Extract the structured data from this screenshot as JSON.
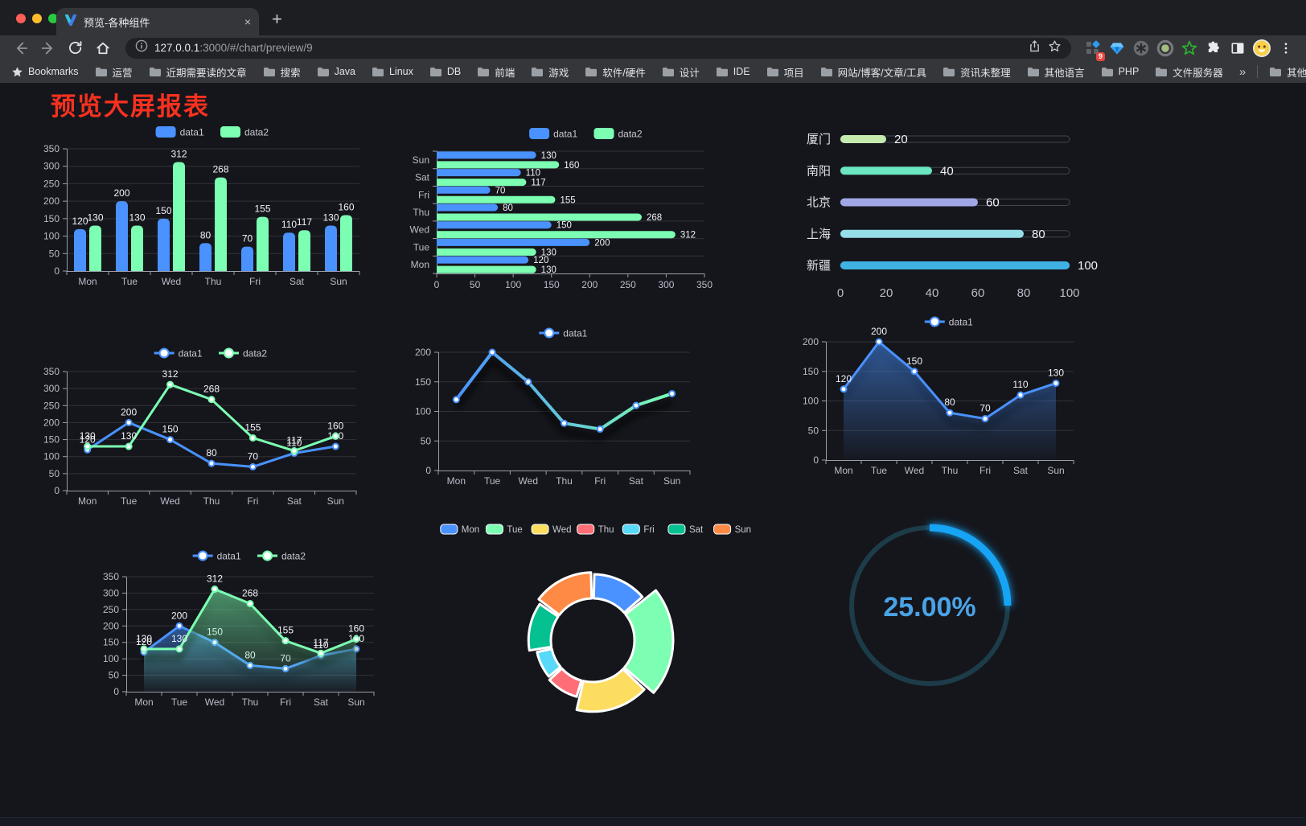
{
  "browser": {
    "traffic_lights": [
      "#ff5f57",
      "#febc2e",
      "#28c840"
    ],
    "tab": {
      "title": "预览-各种组件",
      "close": "×",
      "new_tab": "+"
    },
    "url": {
      "host": "127.0.0.1",
      "rest": ":3000/#/chart/preview/9"
    },
    "extension_badge": "9",
    "bookmarks_bar": {
      "root_label": "Bookmarks",
      "folders": [
        "运营",
        "近期需要读的文章",
        "搜索",
        "Java",
        "Linux",
        "DB",
        "前端",
        "游戏",
        "软件/硬件",
        "设计",
        "IDE",
        "项目",
        "网站/博客/文章/工具",
        "资讯未整理",
        "其他语言",
        "PHP",
        "文件服务器"
      ],
      "overflow": "»",
      "other": "其他书签"
    }
  },
  "page": {
    "title": "预览大屏报表",
    "title_color": "#f8311f",
    "background": "#15161c"
  },
  "chart_data": [
    {
      "type": "bar",
      "title": "",
      "categories": [
        "Mon",
        "Tue",
        "Wed",
        "Thu",
        "Fri",
        "Sat",
        "Sun"
      ],
      "series": [
        {
          "name": "data1",
          "color": "#4992ff",
          "values": [
            120,
            200,
            150,
            80,
            70,
            110,
            130
          ]
        },
        {
          "name": "data2",
          "color": "#7cffb2",
          "values": [
            130,
            130,
            312,
            268,
            155,
            117,
            160
          ]
        }
      ],
      "ymax": 350,
      "ystep": 50,
      "show_labels": true,
      "legend_position": "top",
      "grid": true
    },
    {
      "type": "hbar",
      "categories": [
        "Mon",
        "Tue",
        "Wed",
        "Thu",
        "Fri",
        "Sat",
        "Sun"
      ],
      "series": [
        {
          "name": "data1",
          "color": "#4992ff",
          "values": [
            120,
            200,
            150,
            80,
            70,
            110,
            130
          ]
        },
        {
          "name": "data2",
          "color": "#7cffb2",
          "values": [
            130,
            130,
            312,
            268,
            155,
            117,
            160
          ]
        }
      ],
      "xmax": 350,
      "xstep": 50,
      "show_labels": true,
      "legend_position": "top"
    },
    {
      "type": "progress",
      "max": 100,
      "xticks": [
        0,
        20,
        40,
        60,
        80,
        100
      ],
      "items": [
        {
          "label": "厦门",
          "value": 20,
          "color": "#c4ebad"
        },
        {
          "label": "南阳",
          "value": 40,
          "color": "#6be6c1"
        },
        {
          "label": "北京",
          "value": 60,
          "color": "#a0a7e6"
        },
        {
          "label": "上海",
          "value": 80,
          "color": "#96dee8"
        },
        {
          "label": "新疆",
          "value": 100,
          "color": "#3fb1e3"
        }
      ]
    },
    {
      "type": "line",
      "categories": [
        "Mon",
        "Tue",
        "Wed",
        "Thu",
        "Fri",
        "Sat",
        "Sun"
      ],
      "series": [
        {
          "name": "data1",
          "color": "#4992ff",
          "values": [
            120,
            200,
            150,
            80,
            70,
            110,
            130
          ]
        },
        {
          "name": "data2",
          "color": "#7cffb2",
          "values": [
            130,
            130,
            312,
            268,
            155,
            117,
            160
          ]
        }
      ],
      "ymax": 350,
      "ystep": 50,
      "show_labels": true,
      "legend_position": "top"
    },
    {
      "type": "line",
      "categories": [
        "Mon",
        "Tue",
        "Wed",
        "Thu",
        "Fri",
        "Sat",
        "Sun"
      ],
      "series": [
        {
          "name": "data1",
          "gradient": [
            "#4992ff",
            "#7cffb2"
          ],
          "values": [
            120,
            200,
            150,
            80,
            70,
            110,
            130
          ]
        }
      ],
      "ymax": 200,
      "ystep": 50,
      "show_labels": false,
      "shadow": true,
      "lw": 4,
      "legend_position": "top"
    },
    {
      "type": "line",
      "categories": [
        "Mon",
        "Tue",
        "Wed",
        "Thu",
        "Fri",
        "Sat",
        "Sun"
      ],
      "series": [
        {
          "name": "data1",
          "color": "#4992ff",
          "area": true,
          "values": [
            120,
            200,
            150,
            80,
            70,
            110,
            130
          ]
        }
      ],
      "ymax": 200,
      "ystep": 50,
      "show_labels": true,
      "shadow": true,
      "legend_position": "top"
    },
    {
      "type": "line",
      "categories": [
        "Mon",
        "Tue",
        "Wed",
        "Thu",
        "Fri",
        "Sat",
        "Sun"
      ],
      "series": [
        {
          "name": "data1",
          "color": "#4992ff",
          "area": true,
          "values": [
            120,
            200,
            150,
            80,
            70,
            110,
            130
          ]
        },
        {
          "name": "data2",
          "color": "#7cffb2",
          "area": true,
          "values": [
            130,
            130,
            312,
            268,
            155,
            117,
            160
          ]
        }
      ],
      "ymax": 350,
      "ystep": 50,
      "show_labels": true,
      "shadow": true,
      "legend_position": "top"
    },
    {
      "type": "pie",
      "shape": "rose-donut",
      "legend_position": "top",
      "items": [
        {
          "label": "Mon",
          "value": 120,
          "color": "#4992ff"
        },
        {
          "label": "Tue",
          "value": 200,
          "color": "#7cffb2"
        },
        {
          "label": "Wed",
          "value": 150,
          "color": "#fddd60"
        },
        {
          "label": "Thu",
          "value": 80,
          "color": "#ff6e76"
        },
        {
          "label": "Fri",
          "value": 70,
          "color": "#58d9f9"
        },
        {
          "label": "Sat",
          "value": 110,
          "color": "#05c091"
        },
        {
          "label": "Sun",
          "value": 130,
          "color": "#ff8a45"
        }
      ]
    },
    {
      "type": "gauge",
      "value": 25,
      "label": "25.00%",
      "color": "#17a4f5",
      "track": "#1d3c49",
      "text_color": "#4aa3e6"
    }
  ]
}
